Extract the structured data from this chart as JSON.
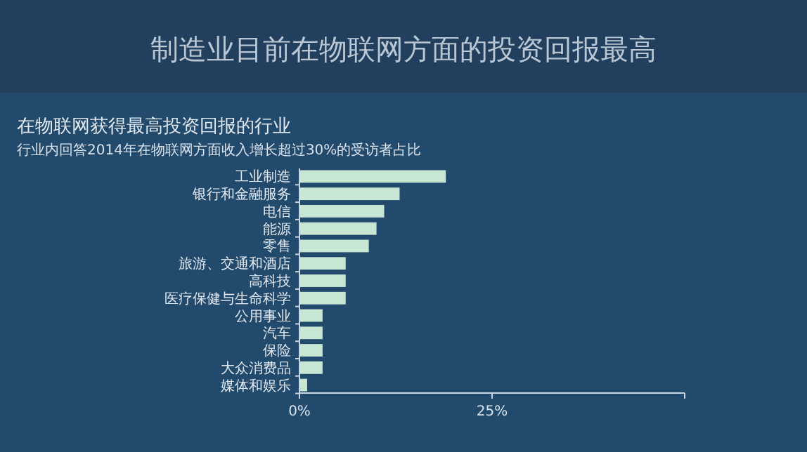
{
  "chart_data": {
    "type": "bar",
    "orientation": "horizontal",
    "title": "制造业目前在物联网方面的投资回报最高",
    "subtitle": "在物联网获得最高投资回报的行业",
    "annotations": [
      "行业内回答2014年在物联网方面收入增长超过30%的受访者占比"
    ],
    "categories": [
      "工业制造",
      "银行和金融服务",
      "电信",
      "能源",
      "零售",
      "旅游、交通和酒店",
      "高科技",
      "医疗保健与生命科学",
      "公用事业",
      "汽车",
      "保险",
      "大众消费品",
      "媒体和娱乐"
    ],
    "values": [
      19,
      13,
      11,
      10,
      9,
      6,
      6,
      6,
      3,
      3,
      3,
      3,
      1
    ],
    "color": "#c8e6d4",
    "xlim": [
      0,
      50
    ],
    "xticks": [
      {
        "value": 0,
        "label": "0%"
      },
      {
        "value": 25,
        "label": "25%"
      },
      {
        "value": 50,
        "label": null
      }
    ],
    "grid": false
  }
}
